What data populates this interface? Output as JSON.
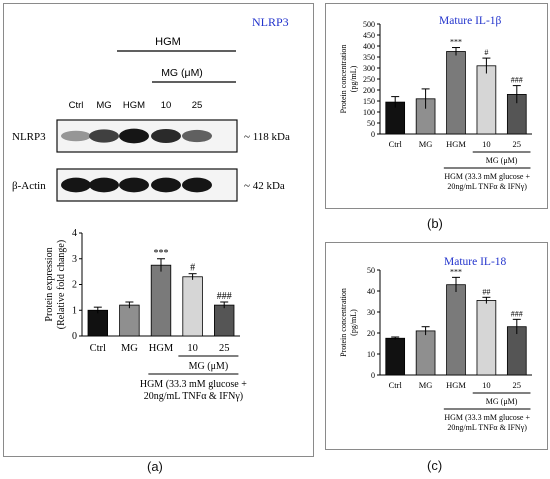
{
  "panels": {
    "a_caption": "(a)",
    "b_caption": "(b)",
    "c_caption": "(c)"
  },
  "blot": {
    "title": "NLRP3",
    "hgm_header": "HGM",
    "mg_header": "MG (μM)",
    "lanes": [
      "Ctrl",
      "MG",
      "HGM",
      "10",
      "25"
    ],
    "rows": [
      {
        "label": "NLRP3",
        "size": "~ 118 kDa",
        "intensity": [
          0.35,
          0.75,
          0.95,
          0.85,
          0.6
        ]
      },
      {
        "label": "β-Actin",
        "size": "~ 42 kDa",
        "intensity": [
          0.95,
          0.95,
          0.95,
          0.95,
          0.95
        ]
      }
    ]
  },
  "chart_data": [
    {
      "id": "nlrp3",
      "type": "bar",
      "categories": [
        "Ctrl",
        "MG",
        "HGM",
        "10",
        "25"
      ],
      "values": [
        1.0,
        1.2,
        2.75,
        2.3,
        1.2
      ],
      "errors": [
        0.12,
        0.12,
        0.25,
        0.12,
        0.12
      ],
      "annotations": [
        "",
        "",
        "***",
        "#",
        "###"
      ],
      "colors": [
        "#111111",
        "#8f8f8f",
        "#7a7a7a",
        "#d6d6d6",
        "#555555"
      ],
      "ylabel": "Protein expression\n(Relative fold change)",
      "ylim": [
        0,
        4
      ],
      "yticks": [
        0,
        1,
        2,
        3,
        4
      ],
      "group_label": "MG (μM)",
      "footnote": "HGM (33.3 mM glucose +\n20ng/mL TNFα & IFNγ)"
    },
    {
      "id": "il1b",
      "type": "bar",
      "title": "Mature IL-1β",
      "categories": [
        "Ctrl",
        "MG",
        "HGM",
        "10",
        "25"
      ],
      "values": [
        145,
        160,
        375,
        310,
        180
      ],
      "errors": [
        25,
        45,
        18,
        35,
        40
      ],
      "annotations": [
        "",
        "",
        "***",
        "#",
        "###"
      ],
      "colors": [
        "#111111",
        "#8f8f8f",
        "#7a7a7a",
        "#d6d6d6",
        "#555555"
      ],
      "ylabel": "Protein concentration\n(pg/mL)",
      "ylim": [
        0,
        500
      ],
      "yticks": [
        0,
        50,
        100,
        150,
        200,
        250,
        300,
        350,
        400,
        450,
        500
      ],
      "group_label": "MG (μM)",
      "footnote": "HGM (33.3 mM glucose +\n20ng/mL TNFα & IFNγ)"
    },
    {
      "id": "il18",
      "type": "bar",
      "title": "Mature IL-18",
      "categories": [
        "Ctrl",
        "MG",
        "HGM",
        "10",
        "25"
      ],
      "values": [
        17.5,
        21,
        43,
        35.5,
        23
      ],
      "errors": [
        0.6,
        2.0,
        3.5,
        1.5,
        3.5
      ],
      "annotations": [
        "",
        "",
        "***",
        "##",
        "###"
      ],
      "colors": [
        "#111111",
        "#8f8f8f",
        "#7a7a7a",
        "#d6d6d6",
        "#555555"
      ],
      "ylabel": "Protein concentration\n(pg/mL)",
      "ylim": [
        0,
        50
      ],
      "yticks": [
        0,
        10,
        20,
        30,
        40,
        50
      ],
      "group_label": "MG (μM)",
      "footnote": "HGM (33.3 mM glucose +\n20ng/mL TNFα & IFNγ)"
    }
  ],
  "colors": {
    "title_blue": "#2233cc",
    "panel_border": "#8a8a8a"
  }
}
